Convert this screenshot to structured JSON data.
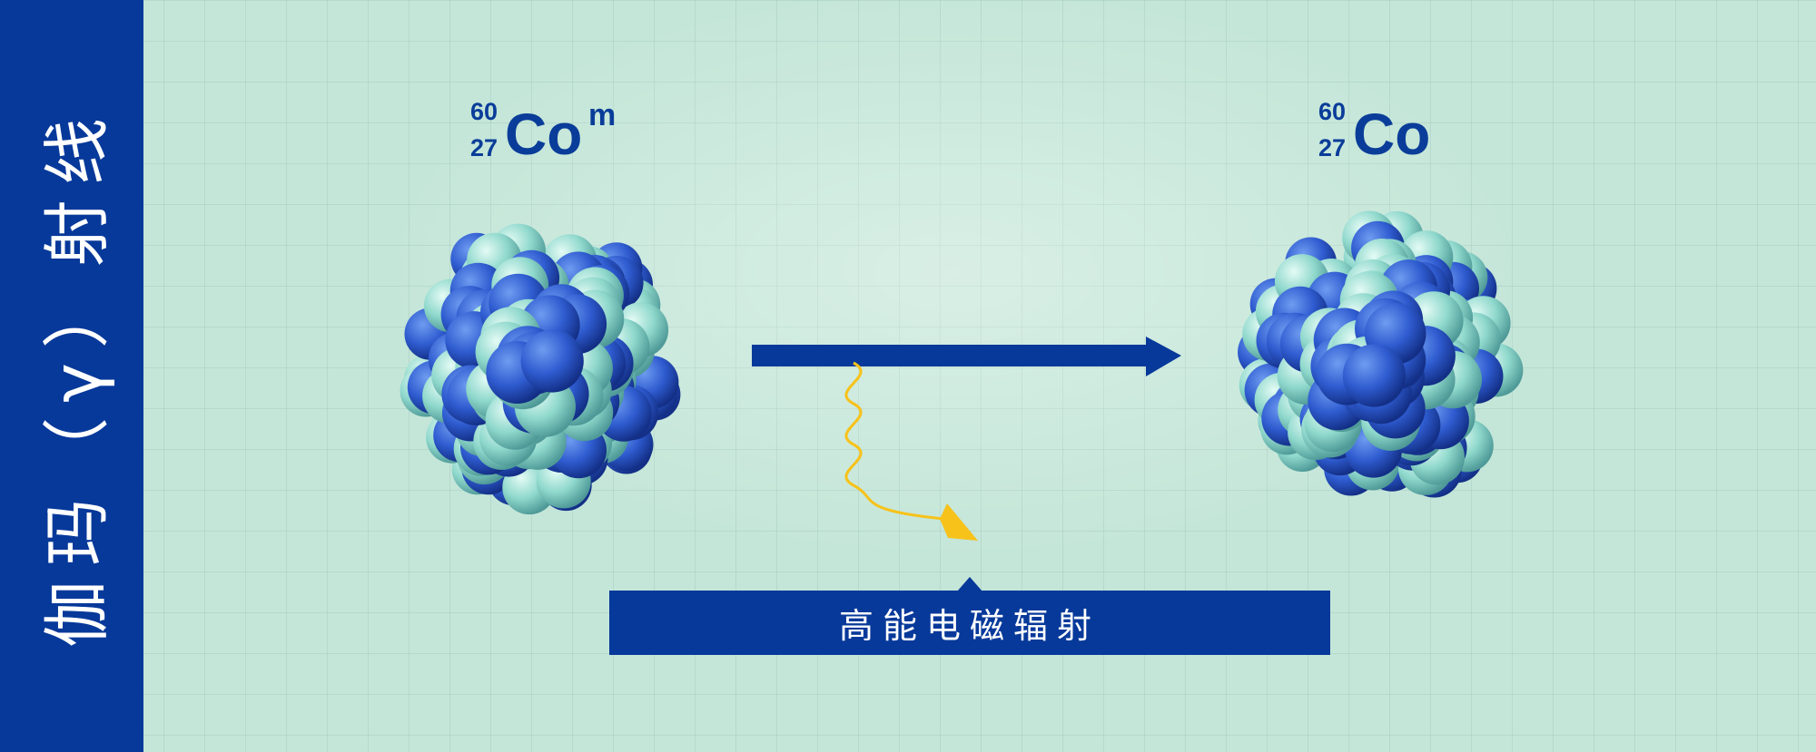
{
  "sidebar": {
    "title": "伽玛（γ）射线"
  },
  "parent_nucleus": {
    "mass_number": "60",
    "atomic_number": "27",
    "symbol": "Co",
    "state": "m"
  },
  "daughter_nucleus": {
    "mass_number": "60",
    "atomic_number": "27",
    "symbol": "Co"
  },
  "radiation": {
    "label": "高能电磁辐射",
    "wave_color": "#f7c21a"
  },
  "colors": {
    "sidebar": "#07399a",
    "arrow": "#07399a",
    "nucleon_dark": "#2f5cd0",
    "nucleon_light": "#8fd8cc",
    "background": "#c4e6d8"
  },
  "icons": [
    "nucleus-sphere-cluster",
    "transition-arrow",
    "gamma-wave-arrow"
  ]
}
